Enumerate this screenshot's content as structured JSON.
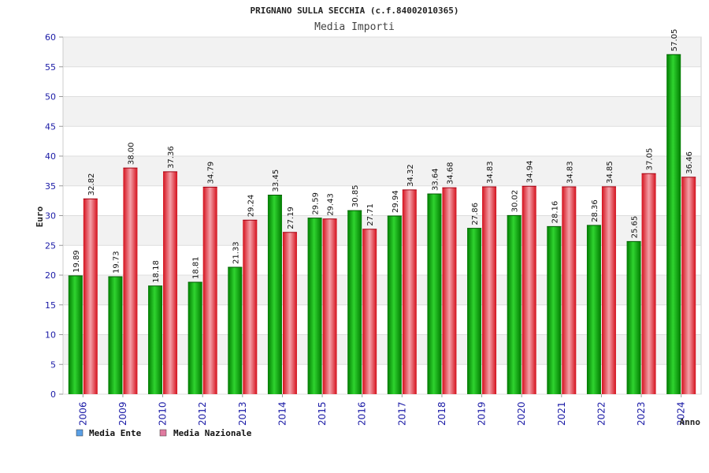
{
  "chart_data": {
    "type": "bar",
    "title": "PRIGNANO SULLA SECCHIA (c.f.84002010365)",
    "subtitle": "Media Importi",
    "xlabel": "Anno",
    "ylabel": "Euro",
    "ylim": [
      0,
      60
    ],
    "yticks": [
      0,
      5,
      10,
      15,
      20,
      25,
      30,
      35,
      40,
      45,
      50,
      55,
      60
    ],
    "grid": true,
    "legend_position": "bottom-left",
    "categories": [
      "2006",
      "2009",
      "2010",
      "2012",
      "2013",
      "2014",
      "2015",
      "2016",
      "2017",
      "2018",
      "2019",
      "2020",
      "2021",
      "2022",
      "2023",
      "2024"
    ],
    "series": [
      {
        "name": "Media Ente",
        "color": "#00aa00",
        "legend_color": "#5aa0e6",
        "values": [
          19.89,
          19.73,
          18.18,
          18.81,
          21.33,
          33.45,
          29.59,
          30.85,
          29.94,
          33.64,
          27.86,
          30.02,
          28.16,
          28.36,
          25.65,
          57.05
        ],
        "labels": [
          "19.89",
          "19.73",
          "18.18",
          "18.81",
          "21.33",
          "33.45",
          "29.59",
          "30.85",
          "29.94",
          "33.64",
          "27.86",
          "30.02",
          "28.16",
          "28.36",
          "25.65",
          "57.05"
        ]
      },
      {
        "name": "Media Nazionale",
        "color": "#e8202a",
        "legend_color": "#e07aa0",
        "values": [
          32.82,
          38.0,
          37.36,
          34.79,
          29.24,
          27.19,
          29.43,
          27.71,
          34.32,
          34.68,
          34.83,
          34.94,
          34.83,
          34.85,
          37.05,
          36.46
        ],
        "labels": [
          "32.82",
          "38.00",
          "37.36",
          "34.79",
          "29.24",
          "27.19",
          "29.43",
          "27.71",
          "34.32",
          "34.68",
          "34.83",
          "34.94",
          "34.83",
          "34.85",
          "37.05",
          "36.46"
        ]
      }
    ]
  }
}
